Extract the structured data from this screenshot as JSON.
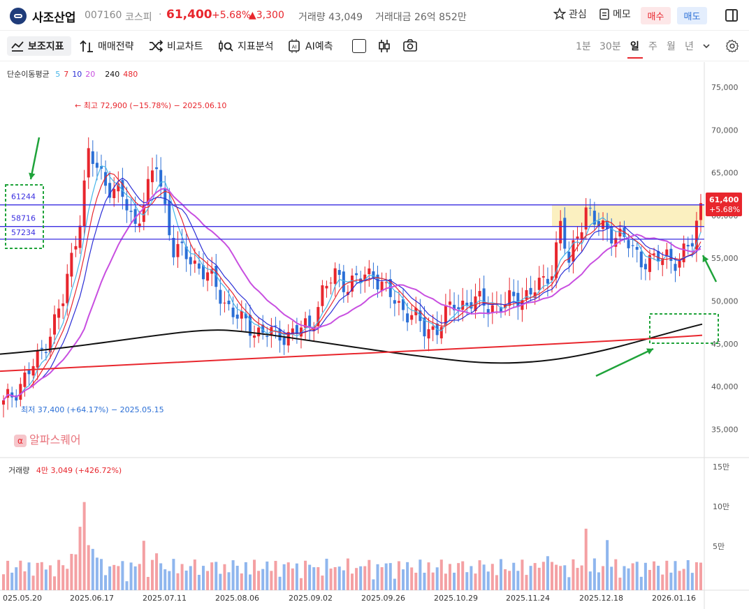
{
  "header": {
    "name": "사조산업",
    "code": "007160",
    "market": "코스피",
    "price": "61,400",
    "change_pct": "+5.68%",
    "change_abs": "▲3,300",
    "volume_label": "거래량 43,049",
    "amount_label": "거래대금 26억 852만",
    "watch_label": "관심",
    "memo_label": "메모",
    "buy_label": "매수",
    "sell_label": "매도"
  },
  "toolbar": {
    "indicators": "보조지표",
    "strategy": "매매전략",
    "compare": "비교차트",
    "analysis": "지표분석",
    "ai": "AI예측",
    "periods": [
      "1분",
      "30분",
      "일",
      "주",
      "월",
      "년"
    ],
    "active_period": "일"
  },
  "legend": {
    "ma_title": "단순이동평균",
    "ma_values": [
      {
        "label": "5",
        "color": "#47b6e8"
      },
      {
        "label": "7",
        "color": "#e8262d"
      },
      {
        "label": "10",
        "color": "#2b2ed6"
      },
      {
        "label": "20",
        "color": "#c84fe0"
      },
      {
        "label": "240",
        "color": "#111111"
      },
      {
        "label": "480",
        "color": "#e8262d"
      }
    ],
    "volume_title": "거래량",
    "volume_value": "4만 3,049 (+426.72%)"
  },
  "annotations": {
    "high": "최고 72,900 (−15.78%) − 2025.06.10",
    "low": "최저 37,400 (+64.17%) − 2025.05.15",
    "box_levels": [
      "61244",
      "58716",
      "57234"
    ],
    "price_tag": "61,400",
    "price_tag_pct": "+5.68%",
    "watermark": "알파스퀘어"
  },
  "axes": {
    "price_ticks": [
      "75,000",
      "70,000",
      "65,000",
      "60,000",
      "55,000",
      "50,000",
      "45,000",
      "40,000",
      "35,000"
    ],
    "volume_ticks": [
      "15만",
      "10만",
      "5만"
    ],
    "dates": [
      "025.05.20",
      "2025.06.17",
      "2025.07.11",
      "2025.08.06",
      "2025.09.02",
      "2025.09.26",
      "2025.10.29",
      "2025.11.24",
      "2025.12.18",
      "2026.01.16"
    ]
  },
  "chart_data": {
    "type": "candlestick",
    "ylim": [
      34000,
      78000
    ],
    "horizontal_levels": [
      61244,
      58716,
      57234
    ],
    "series": [
      {
        "name": "240",
        "color": "#111111"
      },
      {
        "name": "480",
        "color": "#e8262d"
      }
    ]
  },
  "colors": {
    "up": "#e8262d",
    "down": "#2b6fd6",
    "accent": "#3a2ee0",
    "zone": "#fbf0c0"
  }
}
